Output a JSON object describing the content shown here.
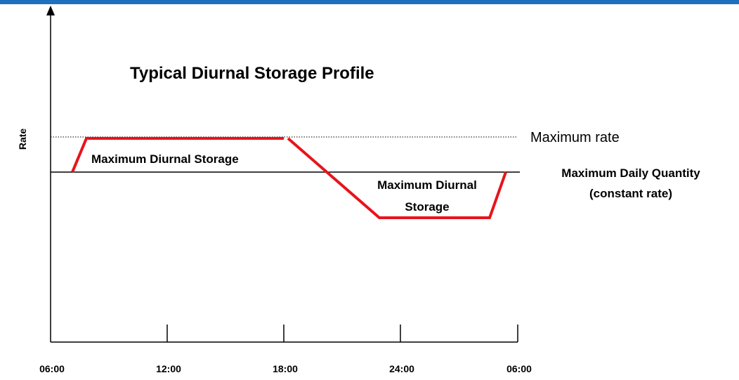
{
  "title": "Typical Diurnal Storage Profile",
  "y_axis_label": "Rate",
  "x_labels": [
    "06:00",
    "12:00",
    "18:00",
    "24:00",
    "06:00"
  ],
  "annotations": {
    "maximum_rate": "Maximum rate",
    "daily_quantity": [
      "Maximum Daily Quantity",
      "(constant rate)"
    ],
    "storage_upper": "Maximum Diurnal Storage",
    "storage_lower": [
      "Maximum Diurnal",
      "Storage"
    ]
  }
}
